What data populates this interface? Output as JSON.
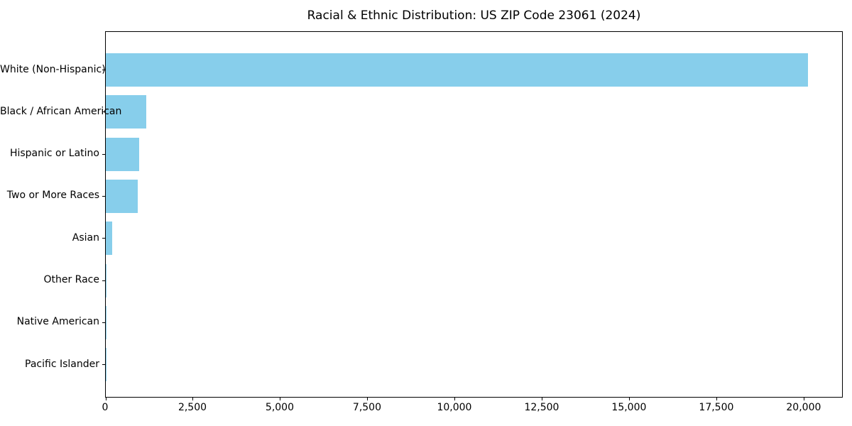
{
  "figure": {
    "background_color": "#ffffff",
    "axis_color": "#000000"
  },
  "chart_data": {
    "type": "bar",
    "orientation": "horizontal",
    "title": "Racial & Ethnic Distribution: US ZIP Code 23061 (2024)",
    "xlabel": "",
    "ylabel": "",
    "categories": [
      "White (Non-Hispanic)",
      "Black / African American",
      "Hispanic or Latino",
      "Two or More Races",
      "Asian",
      "Other Race",
      "Native American",
      "Pacific Islander"
    ],
    "values": [
      20100,
      1150,
      960,
      920,
      185,
      30,
      10,
      4
    ],
    "x_ticks": [
      0,
      2500,
      5000,
      7500,
      10000,
      12500,
      15000,
      17500,
      20000
    ],
    "x_tick_labels": [
      "0",
      "2,500",
      "5,000",
      "7,500",
      "10,000",
      "12,500",
      "15,000",
      "17,500",
      "20,000"
    ],
    "xlim": [
      0,
      21120
    ],
    "grid": false,
    "legend": null,
    "bar_color": "#87CEEB",
    "text_color": "#000000"
  }
}
